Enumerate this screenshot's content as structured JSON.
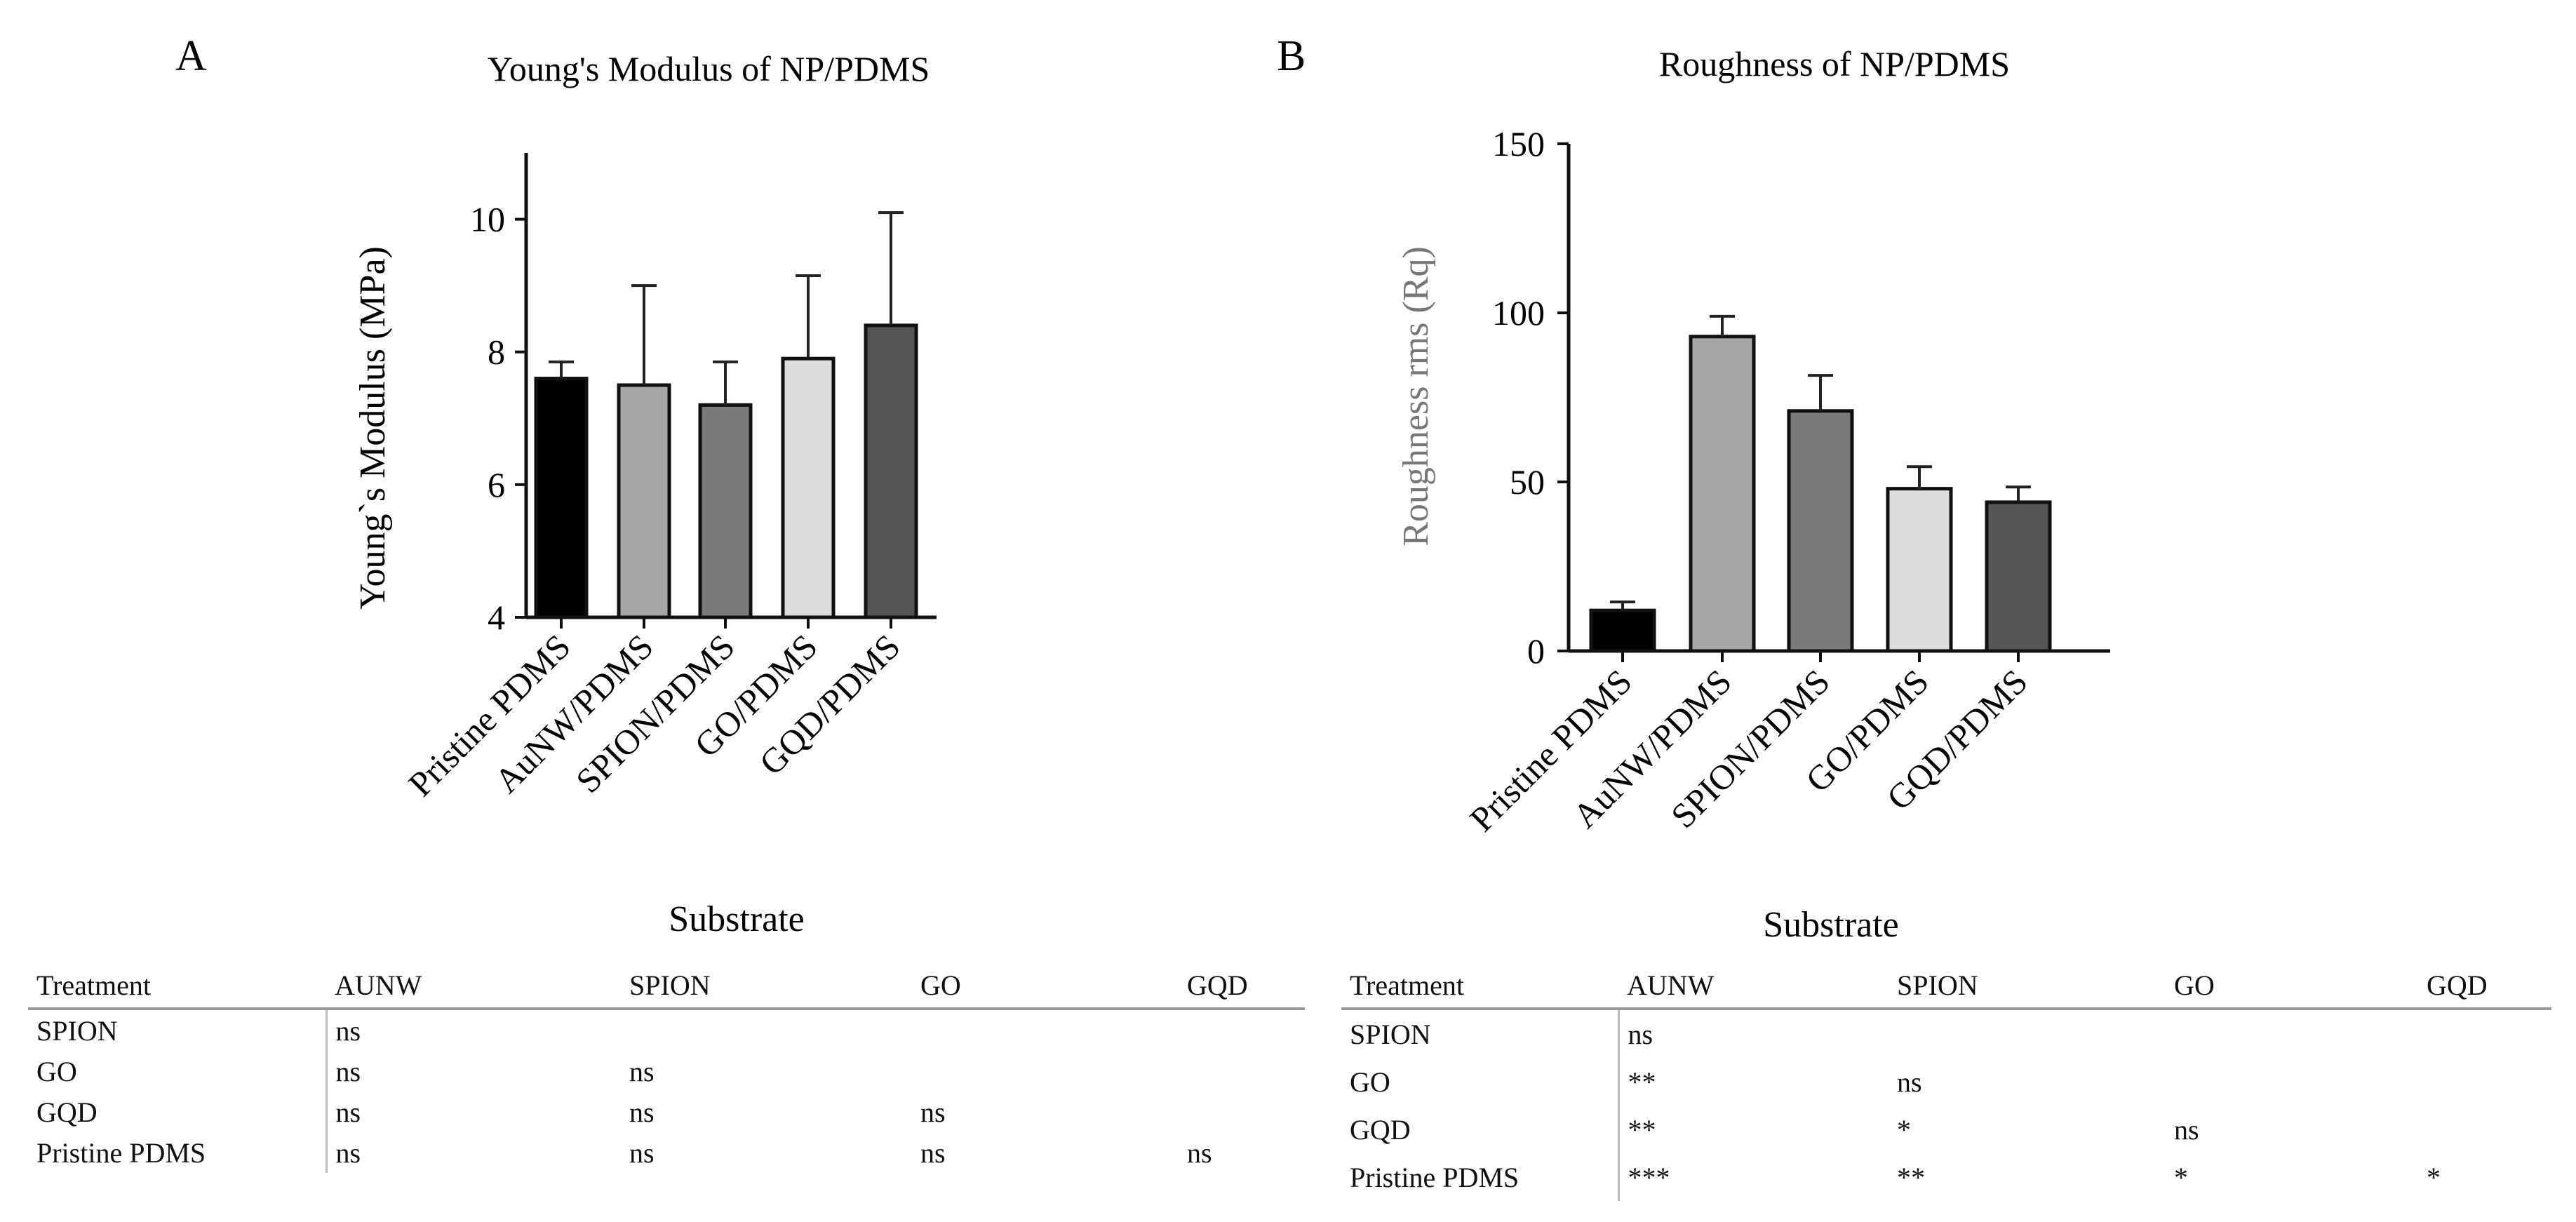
{
  "chart_data": [
    {
      "panel": "A",
      "type": "bar",
      "title": "Young's Modulus of NP/PDMS",
      "xlabel": "Substrate",
      "ylabel": "Young`s Modulus (MPa)",
      "ylim": [
        4,
        11
      ],
      "yticks": [
        4,
        6,
        8,
        10
      ],
      "categories": [
        "Pristine PDMS",
        "AuNW/PDMS",
        "SPION/PDMS",
        "GO/PDMS",
        "GQD/PDMS"
      ],
      "values": [
        7.6,
        7.5,
        7.2,
        7.9,
        8.4
      ],
      "errors": [
        0.25,
        1.5,
        0.65,
        1.25,
        1.7
      ],
      "colors": [
        "#000000",
        "#a6a6a6",
        "#7a7a7a",
        "#dcdcdc",
        "#555555"
      ],
      "table": {
        "headers": [
          "Treatment",
          "AUNW",
          "SPION",
          "GO",
          "GQD"
        ],
        "rows": [
          [
            "SPION",
            "ns",
            "",
            "",
            ""
          ],
          [
            "GO",
            "ns",
            "ns",
            "",
            ""
          ],
          [
            "GQD",
            "ns",
            "ns",
            "ns",
            ""
          ],
          [
            "Pristine PDMS",
            "ns",
            "ns",
            "ns",
            "ns"
          ]
        ]
      }
    },
    {
      "panel": "B",
      "type": "bar",
      "title": "Roughness of NP/PDMS",
      "xlabel": "Substrate",
      "ylabel": "Roughness rms (Rq)",
      "ylim": [
        0,
        150
      ],
      "yticks": [
        0,
        50,
        100,
        150
      ],
      "categories": [
        "Pristine PDMS",
        "AuNW/PDMS",
        "SPION/PDMS",
        "GO/PDMS",
        "GQD/PDMS"
      ],
      "values": [
        12,
        93,
        71,
        48,
        44
      ],
      "errors": [
        2.5,
        6,
        10.5,
        6.5,
        4.5
      ],
      "colors": [
        "#000000",
        "#a6a6a6",
        "#7a7a7a",
        "#dcdcdc",
        "#555555"
      ],
      "table": {
        "headers": [
          "Treatment",
          "AUNW",
          "SPION",
          "GO",
          "GQD"
        ],
        "rows": [
          [
            "SPION",
            "ns",
            "",
            "",
            ""
          ],
          [
            "GO",
            "**",
            "ns",
            "",
            ""
          ],
          [
            "GQD",
            "**",
            "*",
            "ns",
            ""
          ],
          [
            "Pristine PDMS",
            "***",
            "**",
            "*",
            "*"
          ]
        ]
      }
    }
  ]
}
